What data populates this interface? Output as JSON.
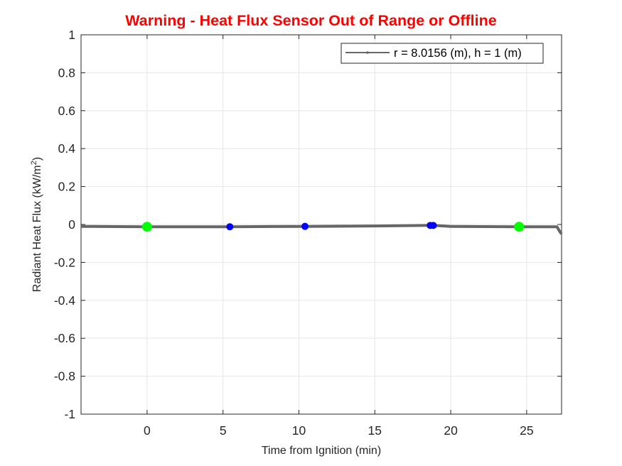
{
  "figure": {
    "title": "Warning - Heat Flux Sensor Out of Range or Offline",
    "title_color": "#ff0000",
    "xlabel": "Time from Ignition (min)",
    "ylabel_main": "Radiant Heat Flux (kW/m",
    "ylabel_sup": "2",
    "ylabel_end": ")",
    "legend_label": "r = 8.0156 (m), h = 1 (m)"
  },
  "chart_data": {
    "type": "line",
    "title": "Warning - Heat Flux Sensor Out of Range or Offline",
    "xlabel": "Time from Ignition (min)",
    "ylabel": "Radiant Heat Flux (kW/m^2)",
    "xlim": [
      -4.35,
      27.3
    ],
    "ylim": [
      -1,
      1
    ],
    "xticks": [
      0,
      5,
      10,
      15,
      20,
      25
    ],
    "yticks": [
      -1,
      -0.8,
      -0.6,
      -0.4,
      -0.2,
      0,
      0.2,
      0.4,
      0.6,
      0.8,
      1
    ],
    "ytick_labels": [
      "-1",
      "-0.8",
      "-0.6",
      "-0.4",
      "-0.2",
      "0",
      "0.2",
      "0.4",
      "0.6",
      "0.8",
      "1"
    ],
    "grid": true,
    "legend_position": "northeast",
    "series": [
      {
        "name": "r = 8.0156 (m), h = 1 (m)",
        "color": "#666666",
        "x": [
          -4.35,
          0,
          5.45,
          10.4,
          15,
          18.65,
          18.85,
          20,
          24.5,
          27.0,
          27.2,
          27.3
        ],
        "y": [
          -0.01,
          -0.012,
          -0.012,
          -0.01,
          -0.008,
          -0.005,
          -0.005,
          -0.01,
          -0.012,
          -0.012,
          -0.04,
          -0.05
        ]
      }
    ],
    "markers": [
      {
        "x": 0,
        "y": -0.012,
        "color": "#00ff00",
        "size": "large"
      },
      {
        "x": 5.45,
        "y": -0.012,
        "color": "#0000ff",
        "size": "small"
      },
      {
        "x": 10.4,
        "y": -0.01,
        "color": "#0000ff",
        "size": "small"
      },
      {
        "x": 18.65,
        "y": -0.005,
        "color": "#0000ff",
        "size": "small"
      },
      {
        "x": 18.85,
        "y": -0.005,
        "color": "#0000ff",
        "size": "small"
      },
      {
        "x": 24.5,
        "y": -0.012,
        "color": "#00ff00",
        "size": "large"
      }
    ]
  }
}
